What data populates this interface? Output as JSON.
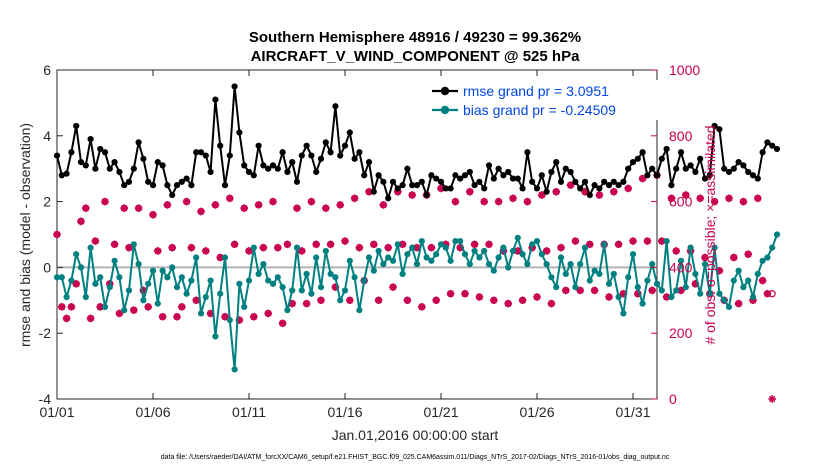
{
  "chart_data": {
    "type": "line",
    "title": "Southern Hemisphere 48916 / 49230 = 99.362%",
    "subtitle": "AIRCRAFT_V_WIND_COMPONENT @ 525 hPa",
    "xlabel": "Jan.01,2016 00:00:00 start",
    "ylabel": "rmse and bias (model - observation)",
    "ylabel_right": "# of obs: o=possible; ×=assimilated",
    "xlim": [
      0,
      31.25
    ],
    "ylim": [
      -4,
      6
    ],
    "ylim_right": [
      0,
      1000
    ],
    "x_ticks": [
      {
        "value": 0,
        "label": "01/01"
      },
      {
        "value": 5,
        "label": "01/06"
      },
      {
        "value": 10,
        "label": "01/11"
      },
      {
        "value": 15,
        "label": "01/16"
      },
      {
        "value": 20,
        "label": "01/21"
      },
      {
        "value": 25,
        "label": "01/26"
      },
      {
        "value": 30,
        "label": "01/31"
      }
    ],
    "y_ticks": [
      "-4",
      "-2",
      "0",
      "2",
      "4",
      "6"
    ],
    "y_ticks_right": [
      "0",
      "200",
      "400",
      "600",
      "800",
      "1000"
    ],
    "x_step": 0.25,
    "legend": [
      "rmse grand pr = 3.0951",
      "bias grand pr = -0.24509"
    ],
    "legend_position": "top-right",
    "colors": {
      "rmse": "#000000",
      "bias": "#008080",
      "obs": "#c8004f",
      "zero_line": "#b4b4b4"
    },
    "series": [
      {
        "name": "rmse",
        "values": [
          3.4,
          2.8,
          2.85,
          3.5,
          4.3,
          3.2,
          3.1,
          3.9,
          3.0,
          3.6,
          3.5,
          3.0,
          3.2,
          2.9,
          2.5,
          2.6,
          3.0,
          3.8,
          3.3,
          2.6,
          2.5,
          3.2,
          3.1,
          2.5,
          2.2,
          2.5,
          2.6,
          2.7,
          2.5,
          3.5,
          3.5,
          3.4,
          2.9,
          5.1,
          3.7,
          2.5,
          3.4,
          5.5,
          4.1,
          3.1,
          2.9,
          2.8,
          3.7,
          3.1,
          3.0,
          3.1,
          3.0,
          3.5,
          2.9,
          3.2,
          2.6,
          3.4,
          3.7,
          3.4,
          2.9,
          3.3,
          3.8,
          3.5,
          4.9,
          3.4,
          3.7,
          4.1,
          3.3,
          3.5,
          2.8,
          3.2,
          2.3,
          2.8,
          2.6,
          2.1,
          2.6,
          2.4,
          2.5,
          3.0,
          2.5,
          2.5,
          2.6,
          2.2,
          2.8,
          2.7,
          2.6,
          2.4,
          2.4,
          2.8,
          2.7,
          2.8,
          2.9,
          2.5,
          2.6,
          2.4,
          3.1,
          2.7,
          3.0,
          2.8,
          2.9,
          2.7,
          2.7,
          2.4,
          3.5,
          2.6,
          2.4,
          2.8,
          2.3,
          2.9,
          3.2,
          2.6,
          3.0,
          2.9,
          2.6,
          2.4,
          2.6,
          2.2,
          2.5,
          2.4,
          2.6,
          2.5,
          2.6,
          2.5,
          2.6,
          3.0,
          3.2,
          3.3,
          3.5,
          2.8,
          3.0,
          2.8,
          3.3,
          3.6,
          2.5,
          3.0,
          3.5,
          3.0,
          3.1,
          2.9,
          3.3,
          2.7,
          2.8,
          4.3,
          4.2,
          3.0,
          2.9,
          3.0,
          3.2,
          3.1,
          2.9,
          2.8,
          2.7,
          3.5,
          3.8,
          3.7,
          3.6
        ],
        "color": "#000000",
        "marker": "hexagon"
      },
      {
        "name": "bias",
        "values": [
          -0.3,
          -0.3,
          -0.9,
          -0.4,
          0.4,
          0.0,
          -0.9,
          0.6,
          -0.5,
          -0.3,
          -1.2,
          -0.6,
          0.2,
          -0.3,
          -1.3,
          -0.7,
          0.7,
          0.1,
          -1.0,
          -0.5,
          -0.1,
          -1.1,
          -0.1,
          -0.3,
          0.0,
          -0.6,
          -0.3,
          -0.8,
          -0.4,
          0.3,
          -1.4,
          -0.9,
          -0.4,
          -2.1,
          -0.8,
          0.3,
          -1.6,
          -3.1,
          -0.5,
          -1.2,
          -0.4,
          0.6,
          -0.2,
          0.1,
          -0.4,
          -0.5,
          -0.3,
          -0.6,
          -1.3,
          -0.7,
          0.6,
          -0.7,
          -0.2,
          -0.8,
          0.3,
          -0.6,
          0.5,
          -0.2,
          -0.3,
          -1.0,
          -0.7,
          0.2,
          -0.3,
          -1.3,
          -0.4,
          0.3,
          -0.1,
          0.5,
          0.1,
          0.3,
          0.2,
          0.7,
          -0.2,
          0.4,
          0.6,
          0.1,
          0.8,
          0.3,
          0.2,
          0.4,
          0.7,
          0.6,
          0.2,
          0.8,
          0.8,
          0.4,
          0.1,
          0.5,
          0.3,
          0.5,
          0.1,
          -0.1,
          0.3,
          0.6,
          0.0,
          0.5,
          0.9,
          0.4,
          0.1,
          0.7,
          0.8,
          0.4,
          0.1,
          -0.3,
          -0.6,
          0.3,
          -0.2,
          0.1,
          -0.6,
          0.1,
          0.6,
          -0.4,
          -0.1,
          -0.2,
          0.7,
          -0.5,
          -0.2,
          -0.9,
          -1.4,
          -0.3,
          0.4,
          -0.6,
          -1.1,
          -0.4,
          0.1,
          -0.5,
          -0.7,
          0.8,
          -0.9,
          -0.7,
          0.2,
          -0.6,
          0.6,
          -0.2,
          -0.8,
          0.1,
          -0.8,
          0.6,
          -0.8,
          -1.0,
          -1.2,
          -0.4,
          -0.1,
          -0.6,
          -0.4,
          -0.9,
          -0.2,
          0.2,
          0.3,
          0.6,
          1.0
        ],
        "color": "#008080",
        "marker": "circle"
      },
      {
        "name": "obs_possible",
        "axis": "right",
        "values": [
          500,
          280,
          245,
          280,
          350,
          540,
          580,
          245,
          480,
          280,
          600,
          350,
          470,
          260,
          580,
          460,
          270,
          580,
          330,
          280,
          560,
          450,
          250,
          590,
          460,
          250,
          280,
          600,
          460,
          300,
          570,
          450,
          260,
          590,
          430,
          250,
          610,
          470,
          240,
          580,
          450,
          250,
          590,
          460,
          260,
          600,
          460,
          230,
          470,
          290,
          580,
          450,
          290,
          600,
          470,
          300,
          580,
          470,
          340,
          590,
          480,
          300,
          610,
          460,
          360,
          630,
          470,
          300,
          590,
          460,
          340,
          630,
          470,
          300,
          620,
          460,
          280,
          620,
          460,
          300,
          640,
          470,
          320,
          600,
          460,
          320,
          630,
          470,
          310,
          600,
          470,
          300,
          600,
          450,
          290,
          610,
          450,
          300,
          600,
          460,
          310,
          620,
          450,
          290,
          630,
          460,
          330,
          650,
          480,
          330,
          630,
          470,
          330,
          620,
          470,
          310,
          630,
          470,
          320,
          640,
          480,
          320,
          670,
          480,
          330,
          680,
          480,
          310,
          610,
          450,
          330,
          620,
          450,
          350,
          610,
          430,
          320,
          600,
          390,
          300,
          610,
          430,
          290,
          600,
          440,
          300,
          610,
          360,
          320,
          320
        ],
        "color": "#c8004f",
        "marker": "circle-open"
      },
      {
        "name": "obs_assimilated",
        "axis": "right",
        "values": [
          500,
          280,
          245,
          280,
          350,
          540,
          580,
          245,
          480,
          280,
          600,
          350,
          470,
          260,
          580,
          460,
          270,
          580,
          330,
          280,
          560,
          450,
          250,
          590,
          460,
          250,
          280,
          600,
          460,
          300,
          570,
          450,
          260,
          590,
          430,
          250,
          610,
          470,
          240,
          580,
          450,
          250,
          590,
          460,
          260,
          600,
          460,
          230,
          470,
          290,
          580,
          450,
          290,
          600,
          470,
          300,
          580,
          470,
          340,
          590,
          480,
          300,
          610,
          460,
          360,
          630,
          470,
          300,
          590,
          460,
          340,
          630,
          470,
          300,
          620,
          460,
          280,
          620,
          460,
          300,
          640,
          470,
          320,
          600,
          460,
          320,
          630,
          470,
          310,
          600,
          470,
          300,
          600,
          450,
          290,
          610,
          450,
          300,
          600,
          460,
          310,
          620,
          450,
          290,
          630,
          460,
          330,
          650,
          480,
          330,
          630,
          470,
          330,
          620,
          470,
          310,
          630,
          470,
          320,
          640,
          480,
          320,
          670,
          480,
          330,
          680,
          480,
          310,
          610,
          450,
          330,
          620,
          450,
          350,
          610,
          430,
          320,
          600,
          390,
          300,
          610,
          430,
          290,
          600,
          440,
          300,
          610,
          360,
          320,
          0
        ],
        "color": "#c8004f",
        "marker": "asterisk"
      }
    ],
    "footnote": "data file: /Users/raeder/DAI/ATM_forcXX/CAM6_setup/f.e21.FHIST_BGC.f09_025.CAM6assim.011/Diags_NTrS_2017-02/Diags_NTrS_2016-01/obs_diag_output.nc"
  }
}
